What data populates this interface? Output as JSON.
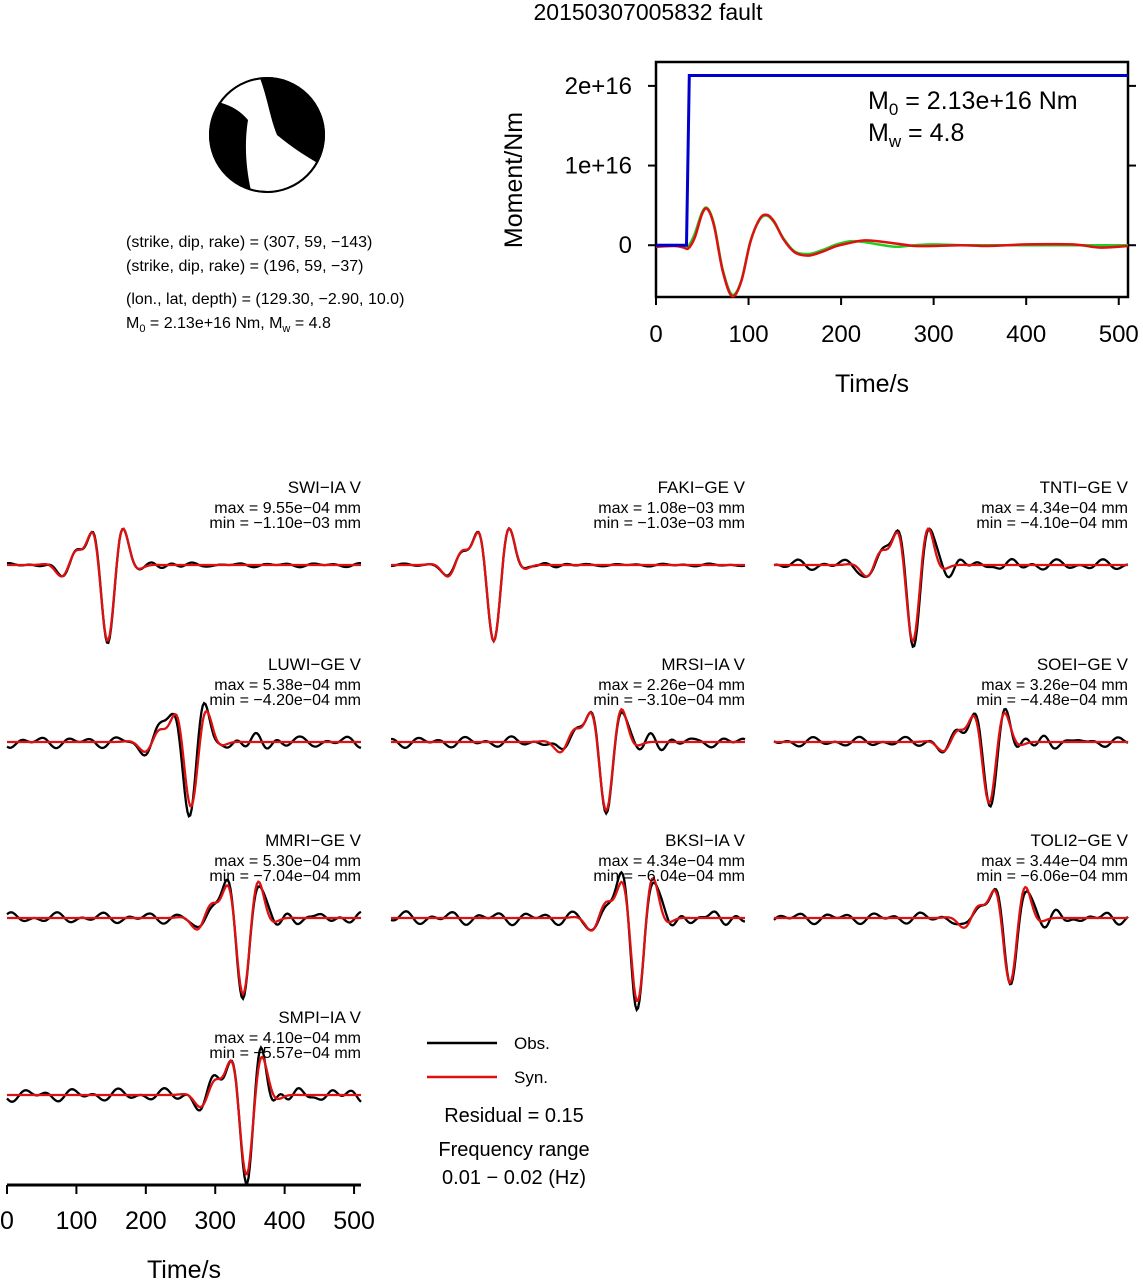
{
  "title": "20150307005832 fault",
  "beachball": {
    "plane1": "(strike, dip, rake) = (307, 59, −143)",
    "plane2": "(strike, dip, rake) = (196, 59, −37)",
    "location": "(lon., lat, depth) = (129.30, −2.90, 10.0)",
    "moment_prefix": "M",
    "moment_sub": "0",
    "moment_mid": " = 2.13e+16 Nm, M",
    "moment_sub2": "w",
    "moment_tail": " = 4.8"
  },
  "colors": {
    "observed": "#000000",
    "synthetic": "#dd1111",
    "moment": "#0000cc",
    "rate": "#22cc22",
    "beach_fill": "#000000"
  },
  "legend": {
    "obs": "Obs.",
    "syn": "Syn.",
    "residual": "Residual = 0.15",
    "freq_title": "Frequency range",
    "freq_value": "0.01 − 0.02 (Hz)"
  },
  "chart_data": [
    {
      "type": "line",
      "name": "moment-function",
      "xlabel": "Time/s",
      "ylabel": "Moment/Nm",
      "xlim": [
        0,
        510
      ],
      "ylim": [
        -6500000000000000.0,
        2.3e+16
      ],
      "xticks": [
        0,
        100,
        200,
        300,
        400,
        500
      ],
      "xtick_labels": [
        "0",
        "100",
        "200",
        "300",
        "400",
        "500"
      ],
      "yticks": [
        0,
        1e+16,
        2e+16
      ],
      "ytick_labels": [
        "0",
        "1e+16",
        "2e+16"
      ],
      "annotation": {
        "m0_prefix": "M",
        "m0_sub": "0",
        "m0_tail": " = 2.13e+16 Nm",
        "mw_prefix": "M",
        "mw_sub": "w",
        "mw_tail": " = 4.8"
      },
      "series": [
        {
          "color": "#0000cc",
          "x": [
            0,
            30,
            33,
            36,
            40,
            510
          ],
          "y": [
            0,
            0,
            0,
            2.13e+16,
            2.13e+16,
            2.13e+16
          ]
        },
        {
          "color": "#22cc22",
          "x": [
            0,
            30,
            35,
            42,
            50,
            56,
            63,
            72,
            82,
            92,
            102,
            112,
            120,
            128,
            138,
            150,
            165,
            180,
            195,
            210,
            225,
            240,
            260,
            280,
            300,
            330,
            360,
            400,
            450,
            510
          ],
          "y": [
            0,
            0,
            -100000000000000.0,
            1500000000000000.0,
            4200000000000000.0,
            4600000000000000.0,
            2500000000000000.0,
            -3000000000000000.0,
            -6200000000000000.0,
            -4500000000000000.0,
            500000000000000.0,
            3200000000000000.0,
            3700000000000000.0,
            2800000000000000.0,
            800000000000000.0,
            -800000000000000.0,
            -1100000000000000.0,
            -600000000000000.0,
            100000000000000.0,
            500000000000000.0,
            400000000000000.0,
            100000000000000.0,
            -200000000000000.0,
            0.0,
            100000000000000.0,
            0.0,
            0.0,
            0.0,
            0.0,
            0.0
          ]
        },
        {
          "color": "#dd1111",
          "x": [
            0,
            20,
            30,
            35,
            42,
            50,
            56,
            63,
            72,
            82,
            92,
            102,
            112,
            120,
            128,
            138,
            150,
            165,
            180,
            195,
            210,
            225,
            240,
            260,
            280,
            300,
            330,
            360,
            400,
            450,
            480,
            510
          ],
          "y": [
            -200000000000000.0,
            -100000000000000.0,
            -300000000000000.0,
            -400000000000000.0,
            1000000000000000.0,
            4000000000000000.0,
            4500000000000000.0,
            2300000000000000.0,
            -3200000000000000.0,
            -6400000000000000.0,
            -4600000000000000.0,
            400000000000000.0,
            3300000000000000.0,
            3800000000000000.0,
            2900000000000000.0,
            700000000000000.0,
            -900000000000000.0,
            -1300000000000000.0,
            -800000000000000.0,
            -100000000000000.0,
            300000000000000.0,
            600000000000000.0,
            500000000000000.0,
            200000000000000.0,
            -100000000000000.0,
            -100000000000000.0,
            0.0,
            -100000000000000.0,
            100000000000000.0,
            100000000000000.0,
            -300000000000000.0,
            -100000000000000.0
          ]
        }
      ]
    },
    {
      "type": "line",
      "name": "waveforms",
      "xlabel": "Time/s",
      "xlim": [
        0,
        510
      ],
      "xticks": [
        0,
        100,
        200,
        300,
        400,
        500
      ],
      "xtick_labels": [
        "0",
        "100",
        "200",
        "300",
        "400",
        "500"
      ],
      "stations": [
        {
          "label": "SWI−IA V",
          "max": "max = 9.55e−04 mm",
          "min": "min = −1.10e−03 mm",
          "centre": 145,
          "scale": 1.0,
          "obs_extra": 0.15,
          "shift": 0
        },
        {
          "label": "FAKI−GE V",
          "max": "max = 1.08e−03 mm",
          "min": "min = −1.03e−03 mm",
          "centre": 148,
          "scale": 1.0,
          "obs_extra": 0.1,
          "shift": 0
        },
        {
          "label": "TNTI−GE V",
          "max": "max = 4.34e−04 mm",
          "min": "min = −4.10e−04 mm",
          "centre": 200,
          "scale": 1.0,
          "obs_extra": 0.4,
          "shift": 5
        },
        {
          "label": "LUWI−GE V",
          "max": "max = 5.38e−04 mm",
          "min": "min = −4.20e−04 mm",
          "centre": 265,
          "scale": 0.85,
          "obs_extra": 0.5,
          "shift": -10
        },
        {
          "label": "MRSI−IA V",
          "max": "max = 2.26e−04 mm",
          "min": "min = −3.10e−04 mm",
          "centre": 310,
          "scale": 0.9,
          "obs_extra": 0.45,
          "shift": 0
        },
        {
          "label": "SOEI−GE V",
          "max": "max = 3.26e−04 mm",
          "min": "min = −4.48e−04 mm",
          "centre": 310,
          "scale": 0.8,
          "obs_extra": 0.45,
          "shift": 5
        },
        {
          "label": "MMRI−GE V",
          "max": "max = 5.30e−04 mm",
          "min": "min = −7.04e−04 mm",
          "centre": 340,
          "scale": 1.0,
          "obs_extra": 0.4,
          "shift": 0
        },
        {
          "label": "BKSI−IA V",
          "max": "max = 4.34e−04 mm",
          "min": "min = −6.04e−04 mm",
          "centre": 355,
          "scale": 1.1,
          "obs_extra": 0.45,
          "shift": 0
        },
        {
          "label": "TOLI2−GE V",
          "max": "max = 3.44e−04 mm",
          "min": "min = −6.06e−04 mm",
          "centre": 340,
          "scale": 0.85,
          "obs_extra": 0.5,
          "shift": 5
        },
        {
          "label": "SMPI−IA V",
          "max": "max = 4.10e−04 mm",
          "min": "min = −5.57e−04 mm",
          "centre": 345,
          "scale": 1.05,
          "obs_extra": 0.45,
          "shift": 0
        }
      ]
    }
  ]
}
